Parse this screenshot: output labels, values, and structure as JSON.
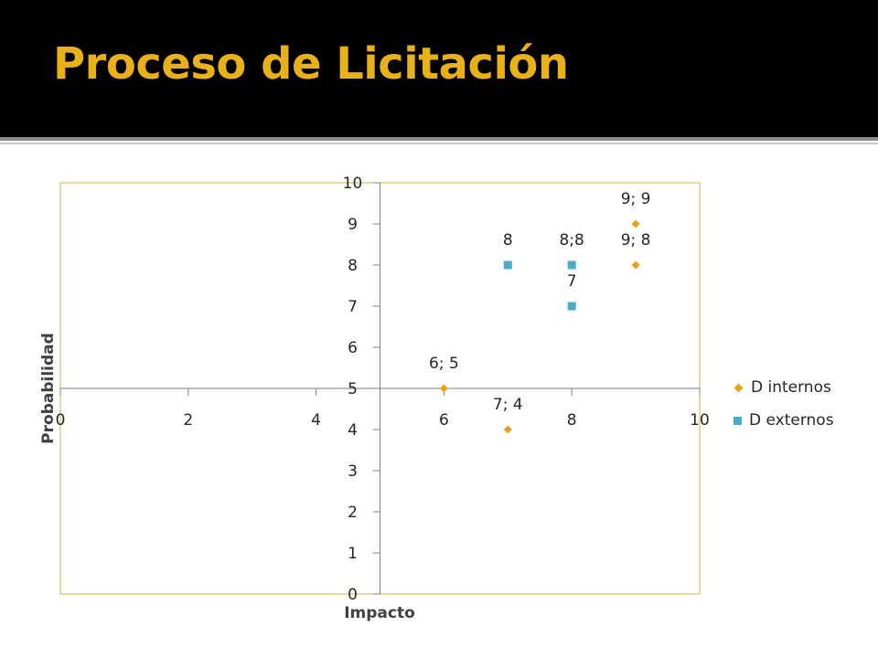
{
  "slide": {
    "title": "Proceso de Licitación",
    "title_color": "#e8b019"
  },
  "chart_data": {
    "type": "scatter",
    "title": "",
    "xlabel": "Impacto",
    "ylabel": "Probabilidad",
    "xlim": [
      0,
      10
    ],
    "ylim": [
      0,
      10
    ],
    "x_ticks": [
      "0",
      "2",
      "4",
      "6",
      "8",
      "10"
    ],
    "y_ticks": [
      "0",
      "1",
      "2",
      "3",
      "4",
      "5",
      "6",
      "7",
      "8",
      "9",
      "10"
    ],
    "grid": false,
    "legend_position": "right",
    "frame_color": "#c9b33c",
    "axis_color": "#7f7f7f",
    "series": [
      {
        "name": "D internos",
        "marker": "diamond",
        "color": "#e6a21a",
        "points": [
          {
            "x": 6,
            "y": 5,
            "label": "6; 5"
          },
          {
            "x": 7,
            "y": 4,
            "label": "7; 4"
          },
          {
            "x": 9,
            "y": 9,
            "label": "9; 9"
          },
          {
            "x": 9,
            "y": 8,
            "label": "9; 8"
          }
        ]
      },
      {
        "name": "D externos",
        "marker": "square",
        "color": "#4bacc6",
        "points": [
          {
            "x": 7,
            "y": 8,
            "label": "8"
          },
          {
            "x": 8,
            "y": 8,
            "label": "8;8"
          },
          {
            "x": 8,
            "y": 7,
            "label": "7"
          }
        ]
      }
    ]
  }
}
